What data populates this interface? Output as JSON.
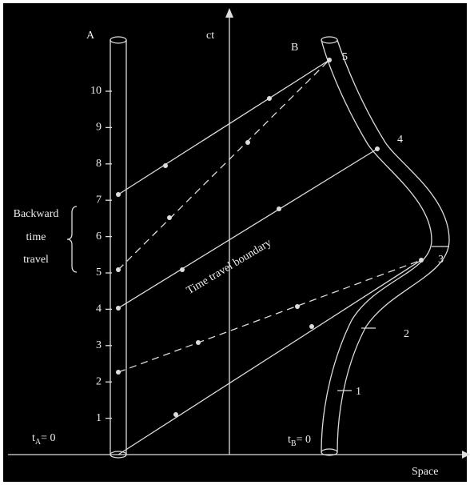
{
  "labels": {
    "a": "A",
    "ct": "ct",
    "b": "B",
    "space": "Space",
    "boundary": "Time travel boundary",
    "backward": [
      "Backward",
      "time",
      "travel"
    ],
    "origin_a": {
      "symbol": "t",
      "subscript": "A",
      "rest": "= 0"
    },
    "origin_b": {
      "symbol": "t",
      "subscript": "B",
      "rest": "= 0"
    }
  },
  "tube_a_ticks": [
    1,
    2,
    3,
    4,
    5,
    6,
    7,
    8,
    9,
    10
  ],
  "tube_b_ticks": [
    1,
    2,
    3,
    4,
    5
  ]
}
